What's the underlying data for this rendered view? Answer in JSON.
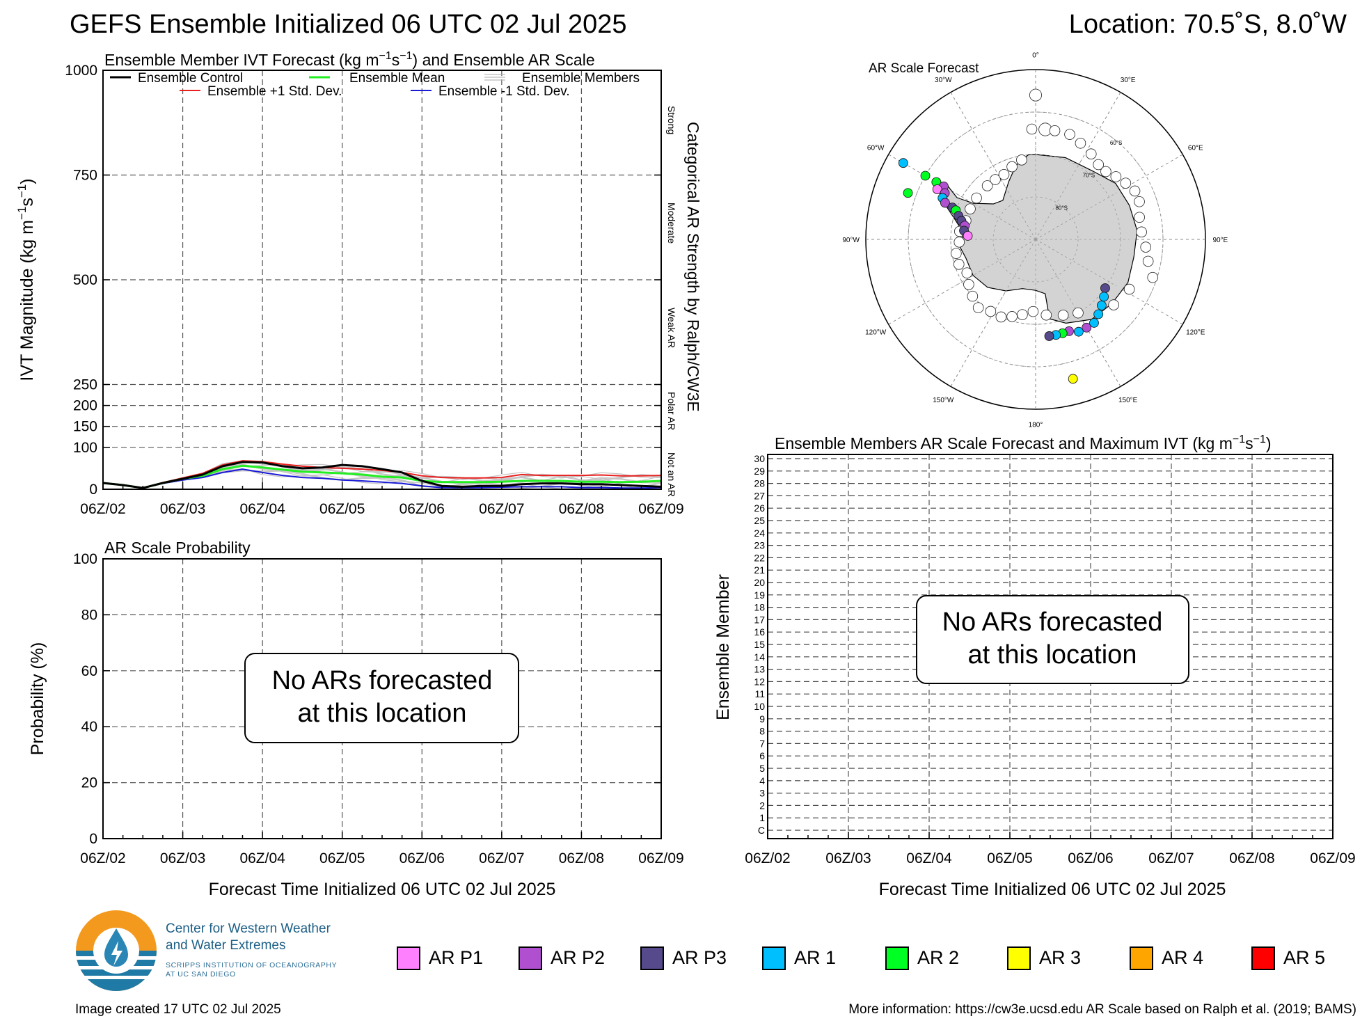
{
  "title": "GEFS Ensemble Initialized 06 UTC 02 Jul 2025",
  "location": "Location: 70.5˚S, 8.0˚W",
  "x_ticks": [
    "06Z/02",
    "06Z/03",
    "06Z/04",
    "06Z/05",
    "06Z/06",
    "06Z/07",
    "06Z/08",
    "06Z/09"
  ],
  "x_axis_label": "Forecast Time Initialized 06 UTC 02 Jul 2025",
  "ivt_panel": {
    "title": "Ensemble Member IVT Forecast (kg m⁻¹s⁻¹) and Ensemble AR Scale",
    "ylabel": "IVT Magnitude (kg m⁻¹s⁻¹)",
    "right_label": "Categorical AR Strength by Ralph/CW3E",
    "categories": [
      "Strong",
      "Moderate",
      "Weak AR",
      "Polar AR",
      "Not an AR"
    ],
    "legend": {
      "control": "Ensemble Control",
      "mean": "Ensemble Mean",
      "members": "Ensemble Members",
      "plus": "Ensemble +1 Std. Dev.",
      "minus": "Ensemble -1 Std. Dev."
    },
    "colors": {
      "control": "#000000",
      "mean": "#22ee22",
      "members": "#bbbbbb",
      "plus": "#e82020",
      "minus": "#1a1ad8"
    }
  },
  "prob_panel": {
    "title": "AR Scale Probability",
    "ylabel": "Probability (%)",
    "yticks": [
      "0",
      "20",
      "40",
      "60",
      "80",
      "100"
    ],
    "message_line1": "No ARs forecasted",
    "message_line2": "at this location"
  },
  "map_panel": {
    "title": "AR Scale Forecast",
    "meridians": [
      "0°",
      "30°E",
      "60°E",
      "90°E",
      "120°E",
      "150°E",
      "180°",
      "150°W",
      "120°W",
      "90°W",
      "60°W",
      "30°W"
    ],
    "parallels": [
      "60°S",
      "70°S",
      "80°S"
    ]
  },
  "members_panel": {
    "title": "Ensemble Members AR Scale Forecast and Maximum IVT (kg m⁻¹s⁻¹)",
    "ylabel": "Ensemble Member",
    "yticks": [
      "C",
      "1",
      "2",
      "3",
      "4",
      "5",
      "6",
      "7",
      "8",
      "9",
      "10",
      "11",
      "12",
      "13",
      "14",
      "15",
      "16",
      "17",
      "18",
      "19",
      "20",
      "21",
      "22",
      "23",
      "24",
      "25",
      "26",
      "27",
      "28",
      "29",
      "30"
    ],
    "message_line1": "No ARs forecasted",
    "message_line2": "at this location"
  },
  "ar_legend": [
    {
      "label": "AR P1",
      "color": "#ff80ff"
    },
    {
      "label": "AR P2",
      "color": "#b050d0"
    },
    {
      "label": "AR P3",
      "color": "#574a8c"
    },
    {
      "label": "AR 1",
      "color": "#00bfff"
    },
    {
      "label": "AR 2",
      "color": "#00ff22"
    },
    {
      "label": "AR 3",
      "color": "#ffff00"
    },
    {
      "label": "AR 4",
      "color": "#ffa500"
    },
    {
      "label": "AR 5",
      "color": "#ff0000"
    }
  ],
  "logo": {
    "name_line1": "Center for Western Weather",
    "name_line2": "and Water Extremes",
    "sub_line1": "SCRIPPS INSTITUTION OF OCEANOGRAPHY",
    "sub_line2": "AT UC SAN DIEGO"
  },
  "footer": {
    "created": "Image created 17 UTC 02 Jul 2025",
    "more_info": "More information: https://cw3e.ucsd.edu AR Scale based on Ralph et al. (2019; BAMS)"
  },
  "chart_data": [
    {
      "type": "line",
      "title": "Ensemble Member IVT Forecast (kg m⁻¹s⁻¹) and Ensemble AR Scale",
      "xlabel": "",
      "ylabel": "IVT Magnitude (kg m⁻¹s⁻¹)",
      "x_unit": "days since 06Z/02",
      "x": [
        0,
        0.25,
        0.5,
        0.75,
        1.0,
        1.25,
        1.5,
        1.75,
        2.0,
        2.25,
        2.5,
        2.75,
        3.0,
        3.25,
        3.5,
        3.75,
        4.0,
        4.25,
        4.5,
        4.75,
        5.0,
        5.25,
        5.5,
        5.75,
        6.0,
        6.25,
        6.5,
        6.75,
        7.0
      ],
      "yticks": [
        0,
        100,
        150,
        200,
        250,
        500,
        750,
        1000
      ],
      "y_scale": "piecewise: 0-250 linear (tick 250 at one quarter of height), 250-1000 linear",
      "ylim": [
        0,
        1000
      ],
      "series": [
        {
          "name": "Ensemble Control",
          "values": [
            15,
            10,
            3,
            15,
            25,
            35,
            55,
            65,
            64,
            55,
            50,
            52,
            58,
            55,
            48,
            40,
            20,
            8,
            6,
            8,
            8,
            12,
            14,
            14,
            12,
            12,
            10,
            8,
            6
          ]
        },
        {
          "name": "Ensemble Mean",
          "values": [
            15,
            10,
            3,
            15,
            25,
            32,
            48,
            56,
            52,
            47,
            42,
            40,
            38,
            35,
            30,
            28,
            20,
            17,
            17,
            17,
            18,
            20,
            20,
            20,
            18,
            18,
            17,
            18,
            20
          ]
        },
        {
          "name": "Ensemble +1 Std. Dev.",
          "values": [
            15,
            10,
            3,
            16,
            27,
            38,
            58,
            68,
            66,
            60,
            55,
            52,
            50,
            48,
            45,
            40,
            32,
            28,
            27,
            27,
            28,
            35,
            33,
            33,
            33,
            34,
            32,
            32,
            33
          ]
        },
        {
          "name": "Ensemble -1 Std. Dev.",
          "values": [
            15,
            10,
            3,
            14,
            22,
            28,
            40,
            48,
            40,
            33,
            28,
            26,
            22,
            20,
            17,
            14,
            8,
            4,
            4,
            4,
            5,
            6,
            6,
            6,
            4,
            4,
            3,
            3,
            4
          ]
        }
      ]
    },
    {
      "type": "bar",
      "title": "AR Scale Probability",
      "ylabel": "Probability (%)",
      "ylim": [
        0,
        100
      ],
      "categories": [],
      "values": []
    },
    {
      "type": "heatmap",
      "title": "Ensemble Members AR Scale Forecast and Maximum IVT (kg m⁻¹s⁻¹)",
      "ylabel": "Ensemble Member",
      "rows": 31,
      "values": []
    }
  ]
}
